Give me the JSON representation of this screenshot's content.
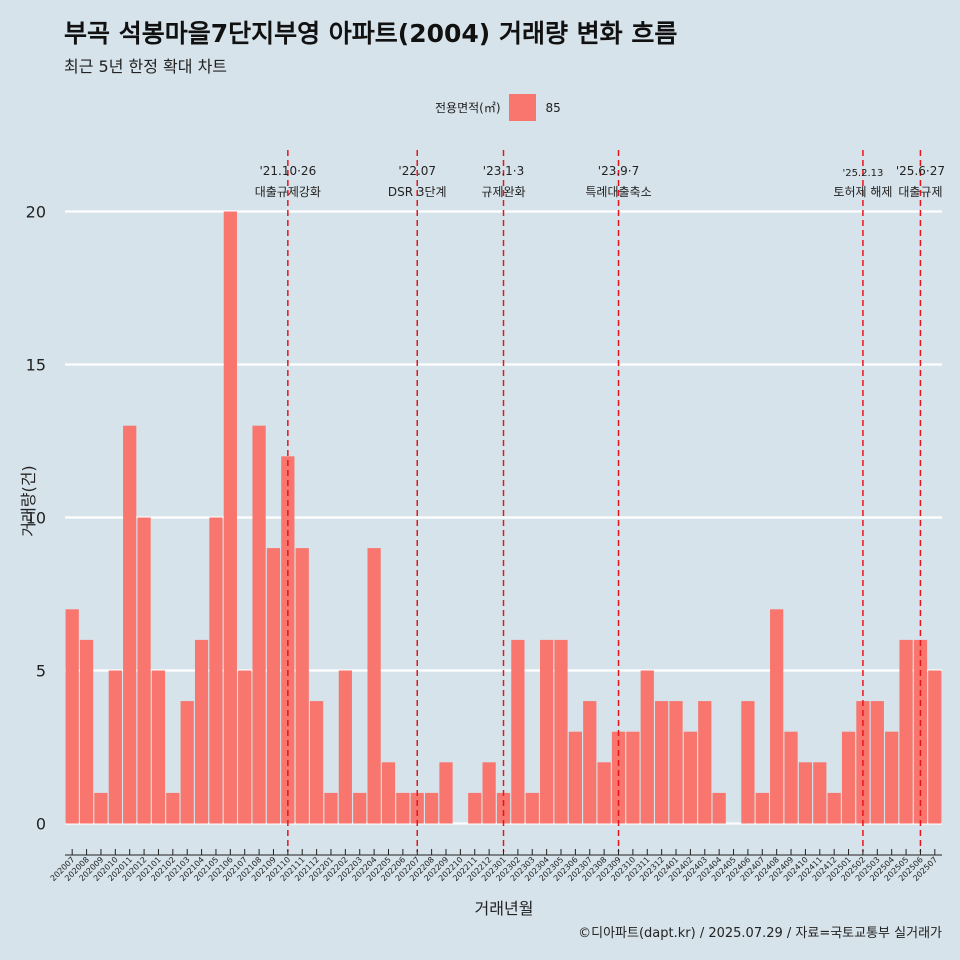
{
  "chart_data": {
    "type": "bar",
    "title": "부곡 석봉마을7단지부영 아파트(2004) 거래량 변화 흐름",
    "subtitle": "최근 5년 한정 확대 차트",
    "xlabel": "거래년월",
    "ylabel": "거래량(건)",
    "ylim": [
      0,
      20
    ],
    "yticks": [
      0,
      5,
      10,
      15,
      20
    ],
    "grid": "horizontal",
    "legend": {
      "position": "top",
      "title": "전용면적(㎡)",
      "entries": [
        "85"
      ]
    },
    "categories": [
      "202007",
      "202008",
      "202009",
      "202010",
      "202011",
      "202012",
      "202101",
      "202102",
      "202103",
      "202104",
      "202105",
      "202106",
      "202107",
      "202108",
      "202109",
      "202110",
      "202111",
      "202112",
      "202201",
      "202202",
      "202203",
      "202204",
      "202205",
      "202206",
      "202207",
      "202208",
      "202209",
      "202210",
      "202211",
      "202212",
      "202301",
      "202302",
      "202303",
      "202304",
      "202305",
      "202306",
      "202307",
      "202308",
      "202309",
      "202310",
      "202311",
      "202312",
      "202401",
      "202402",
      "202403",
      "202404",
      "202405",
      "202406",
      "202407",
      "202408",
      "202409",
      "202410",
      "202411",
      "202412",
      "202501",
      "202502",
      "202503",
      "202504",
      "202505",
      "202506",
      "202507"
    ],
    "series": [
      {
        "name": "85",
        "color": "#f8766d",
        "values": [
          7,
          6,
          1,
          5,
          13,
          10,
          5,
          1,
          4,
          6,
          10,
          20,
          5,
          13,
          9,
          12,
          9,
          4,
          1,
          5,
          1,
          9,
          2,
          1,
          1,
          1,
          2,
          0,
          1,
          2,
          1,
          6,
          1,
          6,
          6,
          3,
          4,
          2,
          3,
          3,
          5,
          4,
          4,
          3,
          4,
          1,
          0,
          4,
          1,
          7,
          3,
          2,
          2,
          1,
          3,
          4,
          4,
          3,
          6,
          6,
          5
        ]
      }
    ],
    "annotations": [
      {
        "category": "202110",
        "label_top": "'21.10·26",
        "label_bottom": "대출규제강화"
      },
      {
        "category": "202207",
        "label_top": "'22.07",
        "label_bottom": "DSR 3단계"
      },
      {
        "category": "202301",
        "label_top": "'23.1·3",
        "label_bottom": "규제완화"
      },
      {
        "category": "202309",
        "label_top": "'23.9·7",
        "label_bottom": "특례대출축소"
      },
      {
        "category": "202502",
        "label_top": "'25.2.13",
        "label_bottom": "토허제 해제"
      },
      {
        "category": "202506",
        "label_top": "'25.6·27",
        "label_bottom": "대출규제"
      }
    ],
    "annotation_color": "#e8141c",
    "caption": "©디아파트(dapt.kr) / 2025.07.29 / 자료=국토교통부 실거래가"
  }
}
